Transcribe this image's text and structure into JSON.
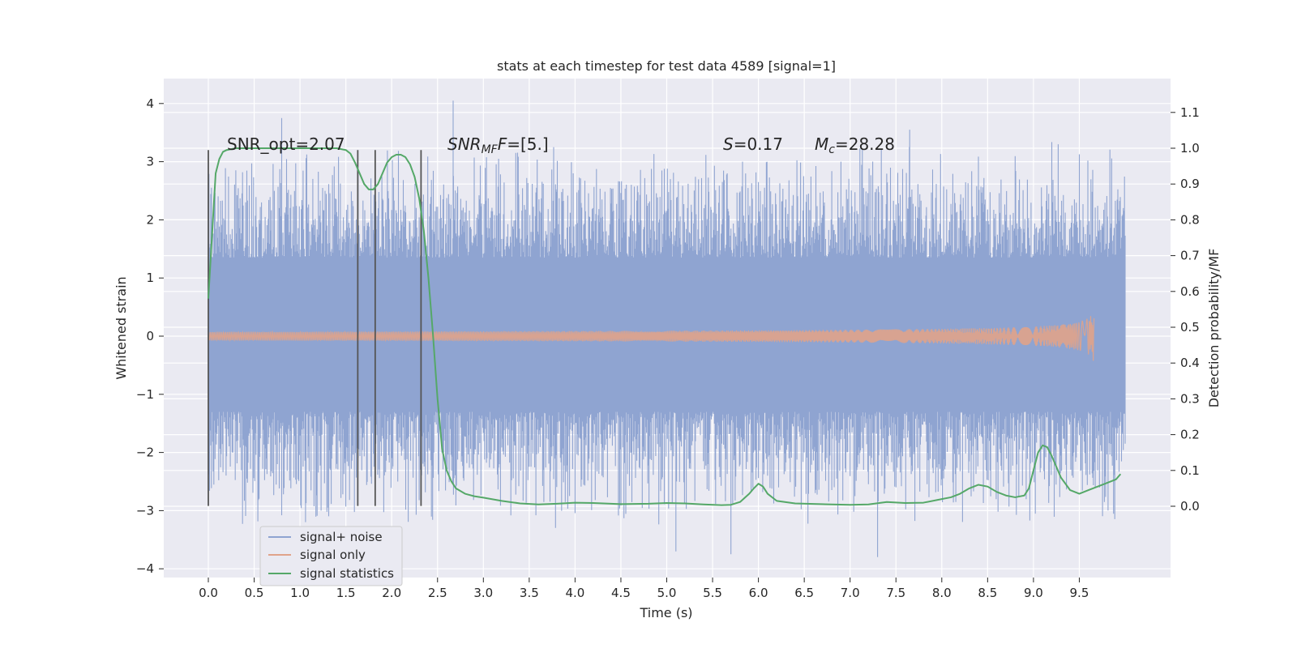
{
  "chart_data": {
    "type": "line",
    "title": "stats at each timestep for test data 4589 [signal=1]",
    "xlabel": "Time (s)",
    "ylabel": "Whitened strain",
    "ylabel_right": "Detection probability/MF",
    "xlim": [
      -0.5,
      10.5
    ],
    "ylim": [
      -4.2,
      4.4
    ],
    "ylim_right": [
      -0.2,
      1.2
    ],
    "x_ticks": [
      "0.0",
      "0.5",
      "1.0",
      "1.5",
      "2.0",
      "2.5",
      "3.0",
      "3.5",
      "4.0",
      "4.5",
      "5.0",
      "5.5",
      "6.0",
      "6.5",
      "7.0",
      "7.5",
      "8.0",
      "8.5",
      "9.0",
      "9.5"
    ],
    "y_ticks": [
      "4",
      "3",
      "2",
      "1",
      "0",
      "−1",
      "−2",
      "−3",
      "−4"
    ],
    "y_ticks_right": [
      "1.1",
      "1.0",
      "0.9",
      "0.8",
      "0.7",
      "0.6",
      "0.5",
      "0.4",
      "0.3",
      "0.2",
      "0.1",
      "0.0"
    ],
    "grid": true,
    "legend_position": "lower-left",
    "annotations": {
      "snr_opt": "SNR_opt=2.07",
      "snr_mf_base": "SNR",
      "snr_mf_sub": "MF",
      "snr_mf_rest": "=[5.]",
      "s_label": "S",
      "s_value": "=0.17",
      "mc_base": "M",
      "mc_sub": "c",
      "mc_value": "=28.28"
    },
    "vlines_x": [
      0.0,
      1.63,
      1.82,
      2.32
    ],
    "vline_range": [
      -2.92,
      3.2
    ],
    "series": [
      {
        "name": "signal+ noise",
        "color": "#8fa4d1",
        "axis": "left",
        "band": {
          "x_start": 0.0,
          "x_end": 10.0,
          "core": [
            -1.3,
            1.35
          ],
          "typical_peak": 2.3,
          "max_peaks": [
            3.75,
            4.05,
            -3.7,
            -3.75,
            -3.8
          ]
        }
      },
      {
        "name": "signal only",
        "color": "#e0a38a",
        "axis": "left",
        "chirp": {
          "x_start": 0.0,
          "x_end": 9.66,
          "peak_amplitude": 0.48
        }
      },
      {
        "name": "signal statistics",
        "color": "#55a868",
        "axis": "right",
        "x": [
          0.0,
          0.05,
          0.08,
          0.12,
          0.16,
          0.2,
          0.3,
          0.5,
          0.8,
          1.0,
          1.2,
          1.4,
          1.5,
          1.55,
          1.6,
          1.65,
          1.7,
          1.75,
          1.8,
          1.85,
          1.9,
          1.95,
          2.0,
          2.05,
          2.1,
          2.15,
          2.2,
          2.25,
          2.3,
          2.35,
          2.4,
          2.45,
          2.5,
          2.55,
          2.6,
          2.65,
          2.7,
          2.8,
          2.9,
          3.0,
          3.2,
          3.4,
          3.6,
          3.8,
          4.0,
          4.2,
          4.5,
          4.8,
          5.0,
          5.2,
          5.4,
          5.6,
          5.7,
          5.8,
          5.9,
          5.95,
          6.0,
          6.05,
          6.1,
          6.2,
          6.4,
          6.8,
          7.0,
          7.2,
          7.4,
          7.6,
          7.8,
          8.0,
          8.1,
          8.2,
          8.3,
          8.4,
          8.5,
          8.6,
          8.7,
          8.8,
          8.9,
          8.95,
          9.0,
          9.05,
          9.1,
          9.15,
          9.2,
          9.3,
          9.4,
          9.5,
          9.6,
          9.7,
          9.8,
          9.9,
          9.95
        ],
        "values": [
          0.58,
          0.8,
          0.93,
          0.97,
          0.99,
          0.995,
          1.0,
          1.0,
          1.0,
          1.0,
          1.0,
          1.0,
          0.995,
          0.985,
          0.96,
          0.93,
          0.9,
          0.885,
          0.885,
          0.9,
          0.93,
          0.96,
          0.975,
          0.982,
          0.982,
          0.975,
          0.955,
          0.92,
          0.86,
          0.77,
          0.64,
          0.48,
          0.3,
          0.16,
          0.1,
          0.07,
          0.05,
          0.035,
          0.028,
          0.024,
          0.015,
          0.008,
          0.005,
          0.007,
          0.01,
          0.009,
          0.006,
          0.007,
          0.009,
          0.008,
          0.005,
          0.003,
          0.004,
          0.012,
          0.035,
          0.05,
          0.063,
          0.055,
          0.035,
          0.015,
          0.008,
          0.005,
          0.004,
          0.005,
          0.012,
          0.009,
          0.01,
          0.02,
          0.025,
          0.035,
          0.05,
          0.06,
          0.055,
          0.04,
          0.03,
          0.025,
          0.03,
          0.05,
          0.1,
          0.15,
          0.17,
          0.165,
          0.14,
          0.08,
          0.045,
          0.035,
          0.045,
          0.055,
          0.065,
          0.075,
          0.09
        ]
      }
    ]
  }
}
